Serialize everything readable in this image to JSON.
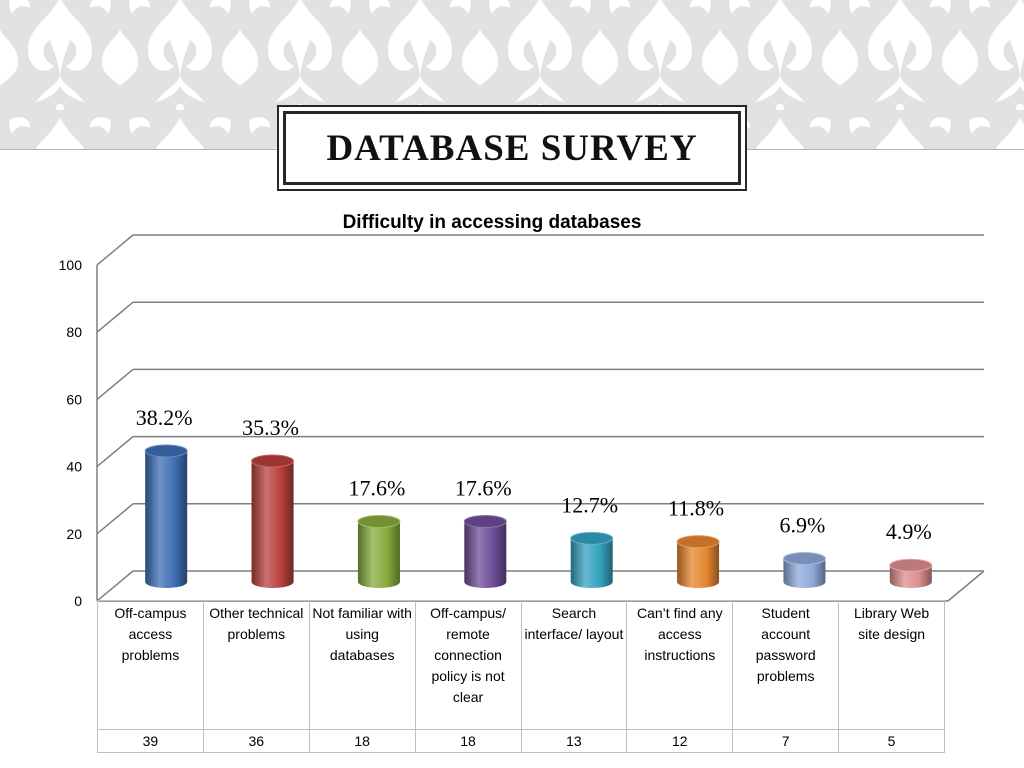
{
  "slide": {
    "title": "DATABASE SURVEY"
  },
  "colors": {
    "banner_bg": "#e2e2e2",
    "banner_motif": "#ffffff",
    "gridline": "#7f7f7f"
  },
  "chart_data": {
    "type": "bar",
    "style": "3d-cylinder",
    "title": "Difficulty in accessing databases",
    "categories": [
      "Off-campus access problems",
      "Other technical problems",
      "Not familiar with using databases",
      "Off-campus/ remote connection policy is not clear",
      "Search interface/ layout",
      "Can’t find any access instructions",
      "Student account password problems",
      "Library Web site design"
    ],
    "values": [
      39,
      36,
      18,
      18,
      13,
      12,
      7,
      5
    ],
    "percent_labels": [
      "38.2%",
      "35.3%",
      "17.6%",
      "17.6%",
      "12.7%",
      "11.8%",
      "6.9%",
      "4.9%"
    ],
    "bar_colors": [
      "#3e6fb4",
      "#b8403c",
      "#86ab3c",
      "#6e4d98",
      "#34a2bf",
      "#e5852f",
      "#8ea8d8",
      "#dc8e8e"
    ],
    "ylim": [
      0,
      100
    ],
    "yticks": [
      "0",
      "20",
      "40",
      "60",
      "80",
      "100"
    ],
    "grid": true,
    "data_table": true
  }
}
